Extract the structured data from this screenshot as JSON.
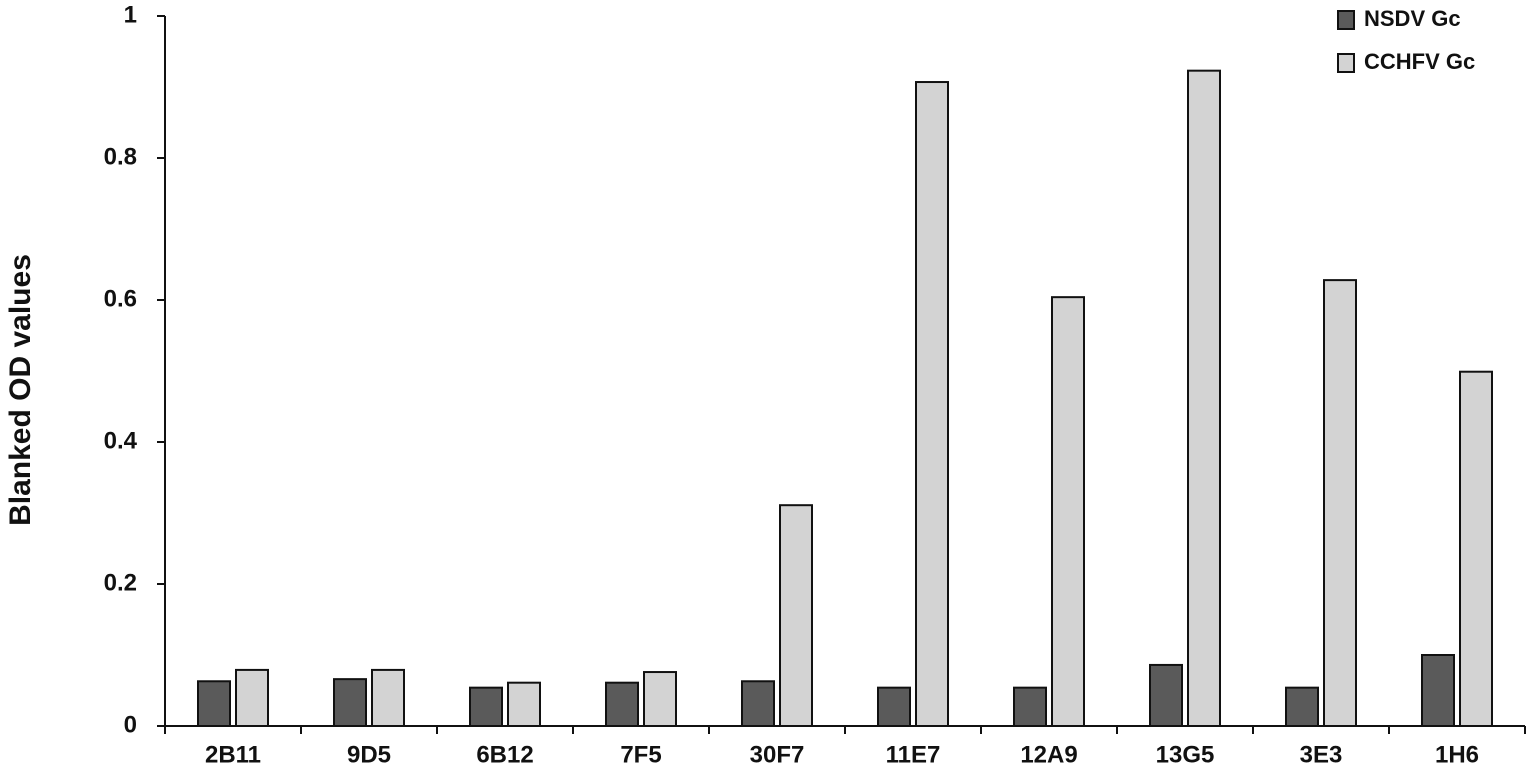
{
  "chart_data": {
    "type": "bar",
    "y_label": "Blanked OD values",
    "categories": [
      "2B11",
      "9D5",
      "6B12",
      "7F5",
      "30F7",
      "11E7",
      "12A9",
      "13G5",
      "3E3",
      "1H6"
    ],
    "series": [
      {
        "name": "NSDV Gc",
        "color": "#5a5a5a",
        "values": [
          0.063,
          0.066,
          0.054,
          0.061,
          0.063,
          0.054,
          0.054,
          0.086,
          0.054,
          0.1
        ]
      },
      {
        "name": "CCHFV Gc",
        "color": "#d3d3d3",
        "values": [
          0.079,
          0.079,
          0.061,
          0.076,
          0.311,
          0.907,
          0.604,
          0.923,
          0.628,
          0.499
        ]
      }
    ],
    "ylim": [
      0,
      1
    ],
    "yticks": [
      0,
      0.2,
      0.4,
      0.6,
      0.8,
      1
    ],
    "grid": false,
    "legend": "top-right"
  }
}
